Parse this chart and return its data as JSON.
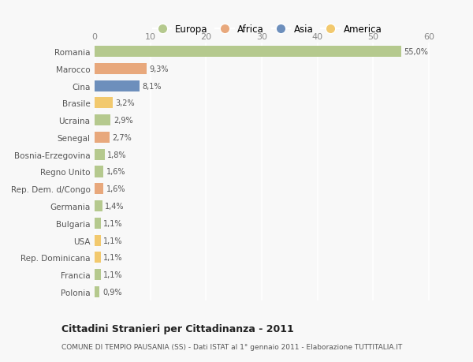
{
  "categories": [
    "Romania",
    "Marocco",
    "Cina",
    "Brasile",
    "Ucraina",
    "Senegal",
    "Bosnia-Erzegovina",
    "Regno Unito",
    "Rep. Dem. d/Congo",
    "Germania",
    "Bulgaria",
    "USA",
    "Rep. Dominicana",
    "Francia",
    "Polonia"
  ],
  "values": [
    55.0,
    9.3,
    8.1,
    3.2,
    2.9,
    2.7,
    1.8,
    1.6,
    1.6,
    1.4,
    1.1,
    1.1,
    1.1,
    1.1,
    0.9
  ],
  "labels": [
    "55,0%",
    "9,3%",
    "8,1%",
    "3,2%",
    "2,9%",
    "2,7%",
    "1,8%",
    "1,6%",
    "1,6%",
    "1,4%",
    "1,1%",
    "1,1%",
    "1,1%",
    "1,1%",
    "0,9%"
  ],
  "colors": [
    "#b5c98e",
    "#e8a87c",
    "#6d8fbc",
    "#f2c96e",
    "#b5c98e",
    "#e8a87c",
    "#b5c98e",
    "#b5c98e",
    "#e8a87c",
    "#b5c98e",
    "#b5c98e",
    "#f2c96e",
    "#f2c96e",
    "#b5c98e",
    "#b5c98e"
  ],
  "legend": [
    {
      "label": "Europa",
      "color": "#b5c98e"
    },
    {
      "label": "Africa",
      "color": "#e8a87c"
    },
    {
      "label": "Asia",
      "color": "#6d8fbc"
    },
    {
      "label": "America",
      "color": "#f2c96e"
    }
  ],
  "title": "Cittadini Stranieri per Cittadinanza - 2011",
  "subtitle": "COMUNE DI TEMPIO PAUSANIA (SS) - Dati ISTAT al 1° gennaio 2011 - Elaborazione TUTTITALIA.IT",
  "xlim": [
    0,
    62
  ],
  "xticks": [
    0,
    10,
    20,
    30,
    40,
    50,
    60
  ],
  "background_color": "#f8f8f8",
  "grid_color": "#ffffff",
  "bar_height": 0.65
}
